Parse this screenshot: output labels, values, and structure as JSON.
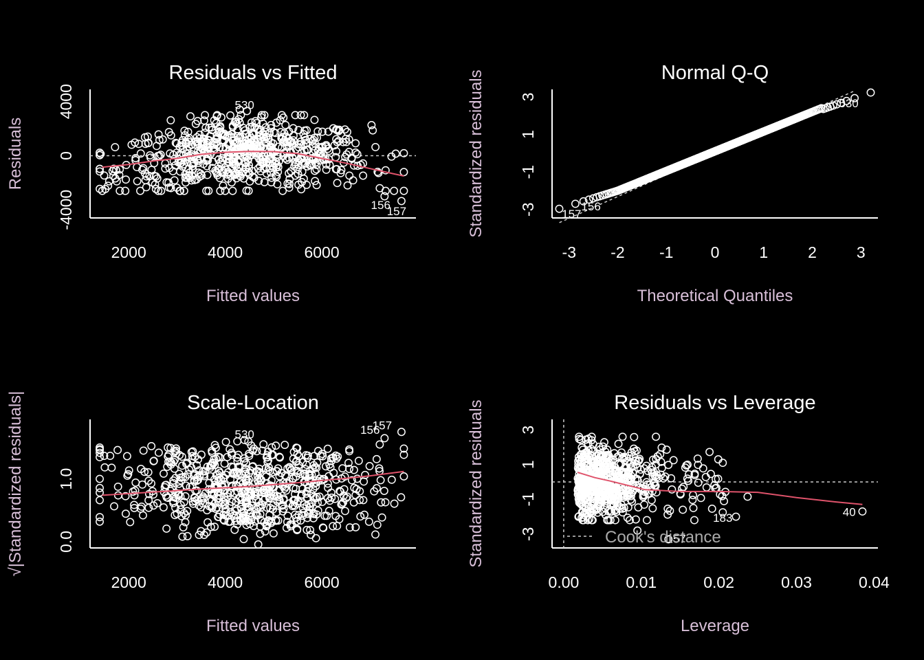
{
  "colors": {
    "background": "#000000",
    "points": "#ffffff",
    "smoother": "#df536b",
    "axis_labels": "#d8bfd8",
    "reference_line": "#cccccc"
  },
  "chart_data": [
    {
      "id": "rvf",
      "type": "scatter",
      "title": "Residuals vs Fitted",
      "xlabel": "Fitted values",
      "ylabel": "Residuals",
      "xlim": [
        1200,
        7950
      ],
      "ylim": [
        -4600,
        4900
      ],
      "xticks": [
        2000,
        4000,
        6000
      ],
      "yticks": [
        -4000,
        0,
        4000
      ],
      "reference": {
        "type": "hline",
        "value": 0
      },
      "smooth": [
        [
          1450,
          -850
        ],
        [
          2000,
          -650
        ],
        [
          2500,
          -400
        ],
        [
          3000,
          -200
        ],
        [
          3500,
          100
        ],
        [
          4000,
          250
        ],
        [
          4500,
          320
        ],
        [
          5000,
          300
        ],
        [
          5500,
          150
        ],
        [
          6000,
          -200
        ],
        [
          6500,
          -550
        ],
        [
          7000,
          -950
        ],
        [
          7500,
          -1350
        ],
        [
          7700,
          -1500
        ]
      ],
      "labels": [
        {
          "text": "530",
          "x": 4400,
          "y": 3450
        },
        {
          "text": "156",
          "x": 7220,
          "y": -3950
        },
        {
          "text": "157",
          "x": 7550,
          "y": -4400
        }
      ],
      "points": {
        "n": 700,
        "center": 4400,
        "spread": 1300,
        "xmin": 1400,
        "xmax": 7700,
        "noise": 1400,
        "curve": "rvf"
      }
    },
    {
      "id": "qq",
      "type": "scatter",
      "title": "Normal Q-Q",
      "xlabel": "Theoretical Quantiles",
      "ylabel": "Standardized residuals",
      "xlim": [
        -3.35,
        3.35
      ],
      "ylim": [
        -3.45,
        3.4
      ],
      "xticks": [
        -3,
        -2,
        -1,
        0,
        1,
        2,
        3
      ],
      "yticks": [
        -3,
        -1,
        1,
        3
      ],
      "reference": {
        "type": "line",
        "from": [
          -3.2,
          -3.7
        ],
        "to": [
          2.85,
          3.3
        ]
      },
      "labels": [
        {
          "text": "530",
          "x": 2.75,
          "y": 2.45
        },
        {
          "text": "156",
          "x": -2.55,
          "y": -3.05
        },
        {
          "text": "157",
          "x": -2.95,
          "y": -3.45
        }
      ],
      "points": {
        "n": 731,
        "curve": "qq"
      }
    },
    {
      "id": "sl",
      "type": "scatter",
      "title": "Scale-Location",
      "xlabel": "Fitted values",
      "ylabel": "√|Standardized residuals|",
      "xlim": [
        1200,
        7950
      ],
      "ylim": [
        -0.1,
        1.95
      ],
      "xticks": [
        2000,
        4000,
        6000
      ],
      "yticks": [
        0.0,
        1.0
      ],
      "ytick_labels": [
        "0.0",
        "1.0"
      ],
      "smooth": [
        [
          1450,
          0.74
        ],
        [
          2500,
          0.79
        ],
        [
          3500,
          0.84
        ],
        [
          4500,
          0.88
        ],
        [
          5500,
          0.94
        ],
        [
          6500,
          1.01
        ],
        [
          7000,
          1.05
        ],
        [
          7700,
          1.12
        ]
      ],
      "labels": [
        {
          "text": "530",
          "x": 4400,
          "y": 1.65
        },
        {
          "text": "156",
          "x": 7000,
          "y": 1.72
        },
        {
          "text": "157",
          "x": 7250,
          "y": 1.79
        }
      ],
      "points": {
        "n": 700,
        "center": 4400,
        "spread": 1300,
        "xmin": 1400,
        "xmax": 7700,
        "curve": "sl"
      }
    },
    {
      "id": "rvl",
      "type": "scatter",
      "title": "Residuals vs Leverage",
      "xlabel": "Leverage",
      "ylabel": "Standardized residuals",
      "xlim": [
        -0.0015,
        0.0405
      ],
      "ylim": [
        -3.8,
        3.6
      ],
      "xticks": [
        0.0,
        0.01,
        0.02,
        0.03,
        0.04
      ],
      "xtick_labels": [
        "0.00",
        "0.01",
        "0.02",
        "0.03",
        "0.04"
      ],
      "yticks": [
        -3,
        -1,
        1,
        3
      ],
      "reference": {
        "type": "hline",
        "value": 0,
        "vline": 0
      },
      "smooth": [
        [
          0.0018,
          0.55
        ],
        [
          0.004,
          0.25
        ],
        [
          0.006,
          0.05
        ],
        [
          0.0105,
          -0.45
        ],
        [
          0.015,
          -0.55
        ],
        [
          0.02,
          -0.55
        ],
        [
          0.025,
          -0.6
        ],
        [
          0.03,
          -0.9
        ],
        [
          0.035,
          -1.15
        ],
        [
          0.0385,
          -1.3
        ]
      ],
      "labels": [
        {
          "text": "183",
          "x": 0.0205,
          "y": -2.3
        },
        {
          "text": "40",
          "x": 0.0368,
          "y": -1.95
        },
        {
          "text": "157",
          "x": 0.0145,
          "y": -3.5
        }
      ],
      "legend": {
        "text": "Cook's distance",
        "placement": "bottom-left"
      },
      "points": {
        "n": 731,
        "curve": "rvl"
      }
    }
  ]
}
